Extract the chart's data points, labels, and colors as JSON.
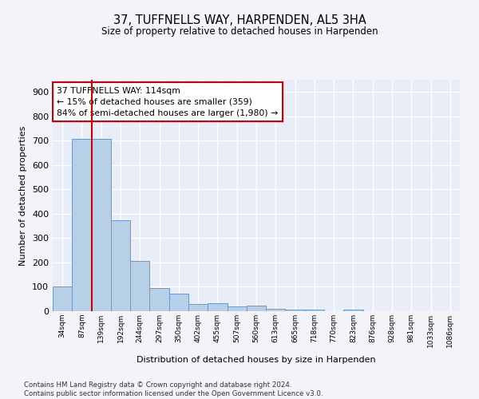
{
  "title": "37, TUFFNELLS WAY, HARPENDEN, AL5 3HA",
  "subtitle": "Size of property relative to detached houses in Harpenden",
  "xlabel": "Distribution of detached houses by size in Harpenden",
  "ylabel": "Number of detached properties",
  "categories": [
    "34sqm",
    "87sqm",
    "139sqm",
    "192sqm",
    "244sqm",
    "297sqm",
    "350sqm",
    "402sqm",
    "455sqm",
    "507sqm",
    "560sqm",
    "613sqm",
    "665sqm",
    "718sqm",
    "770sqm",
    "823sqm",
    "876sqm",
    "928sqm",
    "981sqm",
    "1033sqm",
    "1086sqm"
  ],
  "values": [
    100,
    707,
    707,
    375,
    207,
    95,
    72,
    28,
    32,
    20,
    22,
    10,
    8,
    8,
    0,
    8,
    0,
    0,
    0,
    0,
    0
  ],
  "bar_color": "#b8cfe8",
  "bar_edge_color": "#6699cc",
  "vline_x": 1.5,
  "vline_color": "#cc0000",
  "annotation_text": "37 TUFFNELLS WAY: 114sqm\n← 15% of detached houses are smaller (359)\n84% of semi-detached houses are larger (1,980) →",
  "annotation_box_color": "#cc0000",
  "ylim": [
    0,
    950
  ],
  "yticks": [
    0,
    100,
    200,
    300,
    400,
    500,
    600,
    700,
    800,
    900
  ],
  "background_color": "#e8edf8",
  "fig_background": "#f4f4f8",
  "grid_color": "#ffffff",
  "footnote": "Contains HM Land Registry data © Crown copyright and database right 2024.\nContains public sector information licensed under the Open Government Licence v3.0."
}
